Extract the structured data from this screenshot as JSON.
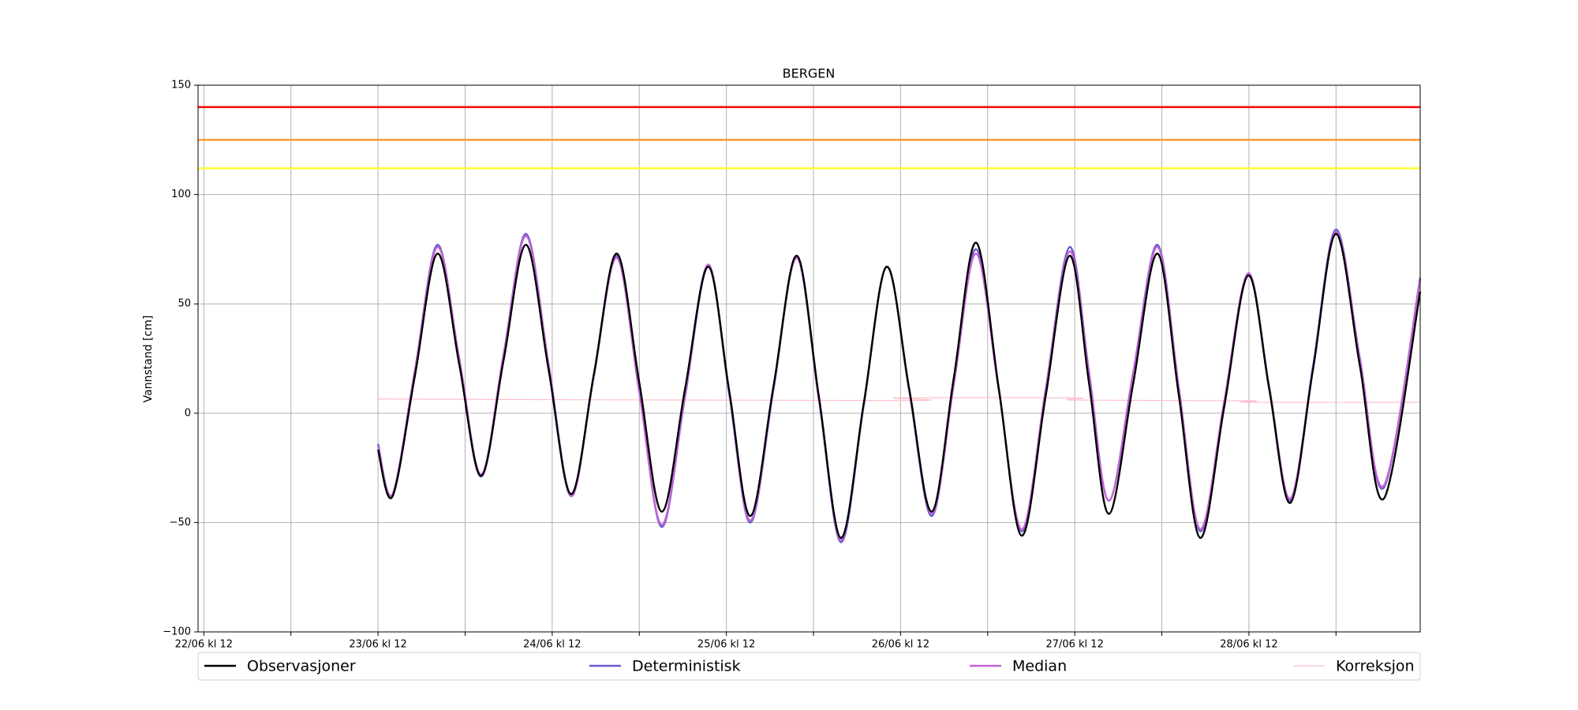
{
  "chart_data": {
    "type": "line",
    "title": "BERGEN",
    "ylabel": "Vannstand [cm]",
    "ylim": [
      -100,
      150
    ],
    "yticks": [
      {
        "value": -100,
        "label": "−100"
      },
      {
        "value": -50,
        "label": "−50"
      },
      0,
      50,
      100,
      150
    ],
    "xlim": [
      -0.8,
      167.6
    ],
    "xticks": [
      {
        "value": 0,
        "label": "22/06 kl 12"
      },
      {
        "value": 12,
        "label": null
      },
      {
        "value": 24,
        "label": "23/06 kl 12"
      },
      {
        "value": 36,
        "label": null
      },
      {
        "value": 48,
        "label": "24/06 kl 12"
      },
      {
        "value": 60,
        "label": null
      },
      {
        "value": 72,
        "label": "25/06 kl 12"
      },
      {
        "value": 84,
        "label": null
      },
      {
        "value": 96,
        "label": "26/06 kl 12"
      },
      {
        "value": 108,
        "label": null
      },
      {
        "value": 120,
        "label": "27/06 kl 12"
      },
      {
        "value": 132,
        "label": null
      },
      {
        "value": 144,
        "label": "28/06 kl 12"
      },
      {
        "value": 156,
        "label": null
      }
    ],
    "grid": true,
    "hlines": [
      {
        "value": 140,
        "color": "#ff0000"
      },
      {
        "value": 125,
        "color": "#ff9a2e"
      },
      {
        "value": 112,
        "color": "#ffff33"
      }
    ],
    "x": [
      24,
      26,
      29.1,
      32.2,
      35.2,
      38.2,
      41.3,
      44.4,
      47.5,
      50.6,
      53.75,
      56.9,
      60,
      63.1,
      66.3,
      69.5,
      72.4,
      75.3,
      78.5,
      81.7,
      84.75,
      87.8,
      90.95,
      94.1,
      97.2,
      100.3,
      103.35,
      106.4,
      109.55,
      112.7,
      116,
      119.3,
      122,
      124.7,
      128.05,
      131.4,
      134.35,
      137.3,
      140.6,
      143.9,
      146.8,
      149.7,
      152.85,
      156,
      159.3,
      162.6,
      167.6
    ],
    "series": [
      {
        "name": "Deterministisk",
        "color": "#6a5acd",
        "values": [
          -14,
          -37,
          20,
          77,
          24,
          -29,
          26.5,
          82,
          22.5,
          -37,
          17.5,
          72,
          10,
          -52,
          7.5,
          67,
          8.5,
          -50,
          11,
          72,
          6.5,
          -59,
          4,
          67,
          10,
          -47,
          14,
          75,
          10.5,
          -54,
          11,
          76,
          18,
          -40,
          18.5,
          77,
          11.5,
          -54,
          5,
          64,
          12,
          -40,
          22,
          84,
          25,
          -34,
          62
        ]
      },
      {
        "name": "Median",
        "color": "#c462d6",
        "values": [
          -15,
          -37,
          19.5,
          76,
          25,
          -28,
          27,
          81,
          22,
          -38,
          17,
          71,
          9.5,
          -51,
          8,
          68,
          9,
          -49,
          11.5,
          71,
          6,
          -58,
          4.5,
          67,
          10,
          -46,
          13.5,
          73,
          10,
          -53,
          10.5,
          74,
          17,
          -40,
          18,
          76,
          11,
          -53,
          5.5,
          64,
          12,
          -39,
          21.5,
          83,
          24.5,
          -33,
          61
        ]
      },
      {
        "name": "Observasjoner",
        "color": "#000000",
        "values": [
          -16.7,
          -38,
          17.5,
          73,
          22.2,
          -28.6,
          24.2,
          77,
          20,
          -37,
          18,
          73,
          14,
          -45,
          11,
          67,
          10,
          -47,
          12.5,
          72,
          7.5,
          -57,
          5,
          67,
          11,
          -45,
          16.5,
          78,
          11,
          -56,
          8,
          72,
          13,
          -46,
          13.5,
          73,
          8,
          -57,
          3,
          63,
          11,
          -41,
          20.5,
          82,
          21.5,
          -39,
          55.6
        ]
      },
      {
        "name": "Korreksjon",
        "color": "#ffc0cb",
        "x": [
          24,
          95.7,
          95.7,
          120,
          120,
          143.9,
          143.9,
          167.6
        ],
        "values": [
          6.5,
          5.8,
          7,
          7,
          6,
          5.7,
          5,
          5
        ]
      }
    ],
    "legend_order": [
      2,
      0,
      1,
      3
    ]
  }
}
